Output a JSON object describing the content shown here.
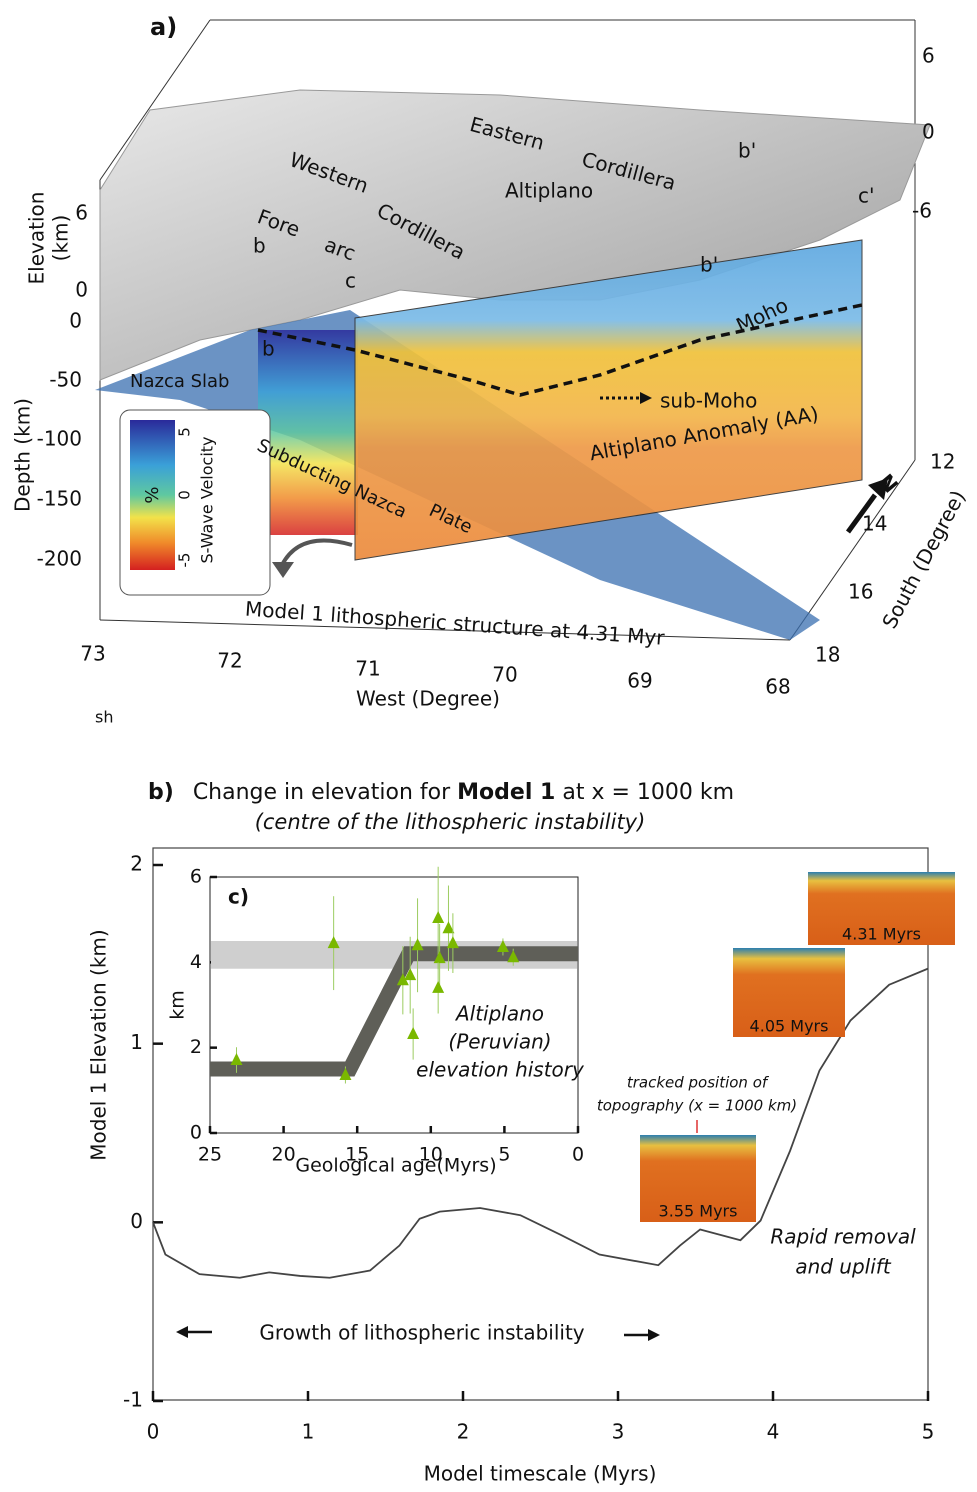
{
  "diagram": {
    "panel_label": "a)",
    "elevation_label": [
      "Elevation",
      "(km)"
    ],
    "elevation_ticks_left": [
      6,
      0
    ],
    "elevation_ticks_right": [
      6,
      0,
      -6
    ],
    "depth_label": "Depth (km)",
    "depth_ticks": [
      0,
      -50,
      -100,
      -150,
      -200
    ],
    "west_ticks": [
      73,
      72,
      71,
      70,
      69,
      68
    ],
    "west_label": "West (Degree)",
    "south_ticks": [
      12,
      14,
      16,
      18
    ],
    "south_label": "South (Degree)",
    "north": "N",
    "colorbar": {
      "title": "S-Wave Velocity",
      "unit": "%",
      "ticks": [
        5,
        0,
        -5
      ]
    },
    "labels": [
      "Western",
      "Cordillera",
      "Eastern",
      "Cordillera",
      "Altiplano",
      "Fore",
      "arc",
      "b",
      "c",
      "b'",
      "c'",
      "b'",
      "b",
      "Moho",
      "sub-Moho",
      "Altiplano Anomaly (AA)",
      "Nazca Slab",
      "Subducting Nazca",
      "Plate"
    ],
    "caption": "Model 1 lithospheric structure at 4.31 Myr",
    "corner_text": "sh"
  },
  "chart_data": [
    {
      "type": "line",
      "panel_label": "b)",
      "title": [
        "Change in elevation for ",
        "Model 1",
        " at x = 1000 km"
      ],
      "subtitle": "(centre of the lithospheric instability)",
      "xlabel": "Model timescale (Myrs)",
      "ylabel": "Model 1 Elevation (km)",
      "xlim": [
        0,
        5
      ],
      "xticks": [
        0,
        1,
        2,
        3,
        4,
        5
      ],
      "ylim": [
        -1,
        2
      ],
      "yticks": [
        -1,
        0,
        1,
        2
      ],
      "color": "#444444",
      "x": [
        0,
        0.08,
        0.3,
        0.56,
        0.75,
        0.95,
        1.14,
        1.4,
        1.59,
        1.72,
        1.85,
        2.11,
        2.37,
        2.63,
        2.88,
        3.26,
        3.4,
        3.53,
        3.66,
        3.79,
        3.92,
        4.11,
        4.3,
        4.5,
        4.75,
        5
      ],
      "values": [
        0,
        -0.18,
        -0.29,
        -0.31,
        -0.28,
        -0.3,
        -0.31,
        -0.27,
        -0.13,
        0.02,
        0.06,
        0.08,
        0.04,
        -0.07,
        -0.18,
        -0.24,
        -0.13,
        -0.04,
        -0.07,
        -0.1,
        0.01,
        0.4,
        0.85,
        1.13,
        1.33,
        1.42
      ],
      "annotations": [
        "tracked position of",
        "topography (x = 1000 km)",
        "Rapid  removal",
        "and uplift",
        "Growth of lithospheric instability"
      ],
      "snapshots": [
        "4.31 Myrs",
        "4.05 Myrs",
        "3.55 Myrs"
      ]
    },
    {
      "type": "scatter",
      "panel_label": "c)",
      "xlabel": "Geological age(Myrs)",
      "ylabel": "km",
      "xlim": [
        25,
        0
      ],
      "xticks": [
        25,
        20,
        15,
        10,
        5,
        0
      ],
      "ylim": [
        0,
        6
      ],
      "yticks": [
        0,
        2,
        4,
        6
      ],
      "color": "#7ab800",
      "x": [
        23.2,
        16.6,
        15.8,
        11.9,
        11.4,
        10.9,
        11.2,
        9.5,
        9.4,
        9.5,
        8.8,
        8.5,
        5.1,
        4.4
      ],
      "values": [
        1.71,
        4.45,
        1.36,
        3.58,
        3.7,
        4.4,
        2.32,
        5.04,
        4.1,
        3.4,
        4.8,
        4.45,
        4.36,
        4.12
      ],
      "errors": [
        0.3,
        1.1,
        0.2,
        0.8,
        0.9,
        1.1,
        0.6,
        1.2,
        0.8,
        0.6,
        1.0,
        0.7,
        0.2,
        0.2
      ],
      "band": [
        3.85,
        4.5
      ],
      "trend": {
        "x": [
          25,
          15.5,
          11.5,
          0
        ],
        "values": [
          1.5,
          1.5,
          4.2,
          4.2
        ]
      },
      "annotation": [
        "Altiplano",
        "(Peruvian)",
        "elevation history"
      ]
    }
  ]
}
